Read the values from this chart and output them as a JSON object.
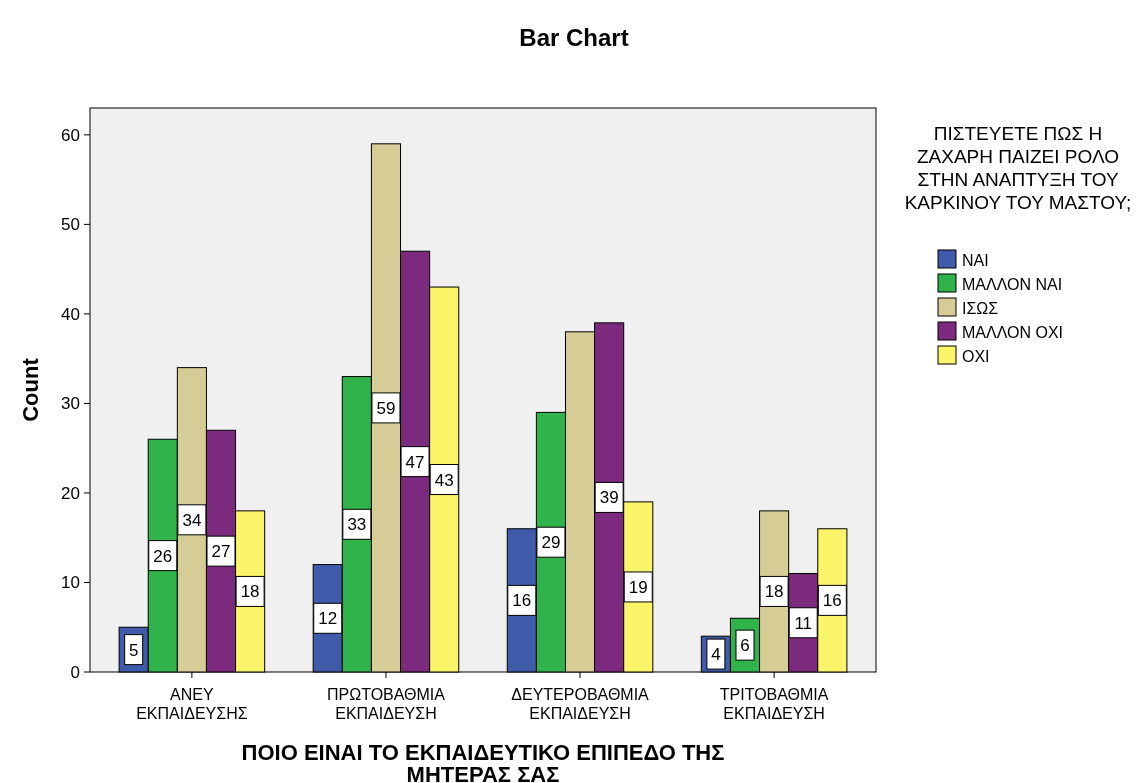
{
  "chart_data": {
    "type": "bar",
    "title": "Bar Chart",
    "xlabel": "ΠΟΙΟ ΕΙΝΑΙ ΤΟ ΕΚΠΑΙΔΕΥΤΙΚΟ ΕΠΙΠΕΔΟ ΤΗΣ ΜΗΤΕΡΑΣ ΣΑΣ",
    "ylabel": "Count",
    "legend_title": "ΠΙΣΤΕΥΕΤΕ ΠΩΣ Η ΖΑΧΑΡΗ ΠΑΙΖΕΙ ΡΟΛΟ ΣΤΗΝ ΑΝΑΠΤΥΞΗ ΤΟΥ ΚΑΡΚΙΝΟΥ ΤΟΥ ΜΑΣΤΟΥ;",
    "categories": [
      "ΑΝΕΥ ΕΚΠΑΙΔΕΥΣΗΣ",
      "ΠΡΩΤΟΒΑΘΜΙΑ ΕΚΠΑΙΔΕΥΣΗ",
      "ΔΕΥΤΕΡΟΒΑΘΜΙΑ ΕΚΠΑΙΔΕΥΣΗ",
      "ΤΡΙΤΟΒΑΘΜΙΑ ΕΚΠΑΙΔΕΥΣΗ"
    ],
    "series": [
      {
        "name": "ΝΑΙ",
        "color": "#3f5ba9",
        "values": [
          5,
          12,
          16,
          4
        ],
        "value_labels": [
          "5",
          "12",
          "16",
          "4"
        ]
      },
      {
        "name": "ΜΑΛΛΟΝ ΝΑΙ",
        "color": "#2fb34a",
        "values": [
          26,
          33,
          29,
          6
        ],
        "value_labels": [
          "26",
          "33",
          "29",
          "6"
        ]
      },
      {
        "name": "ΙΣΩΣ",
        "color": "#d5cd95",
        "values": [
          34,
          59,
          38,
          18
        ],
        "value_labels": [
          "34",
          "59",
          null,
          "18"
        ]
      },
      {
        "name": "ΜΑΛΛΟΝ ΟΧΙ",
        "color": "#7b2a7e",
        "values": [
          27,
          47,
          39,
          11
        ],
        "value_labels": [
          "27",
          "47",
          "39",
          "11"
        ]
      },
      {
        "name": "ΟΧΙ",
        "color": "#fbf56a",
        "values": [
          18,
          43,
          19,
          16
        ],
        "value_labels": [
          "18",
          "43",
          "19",
          "16"
        ]
      }
    ],
    "ylim": [
      0,
      63
    ],
    "yticks": [
      0,
      10,
      20,
      30,
      40,
      50,
      60
    ],
    "grid": false,
    "legend": "right"
  }
}
